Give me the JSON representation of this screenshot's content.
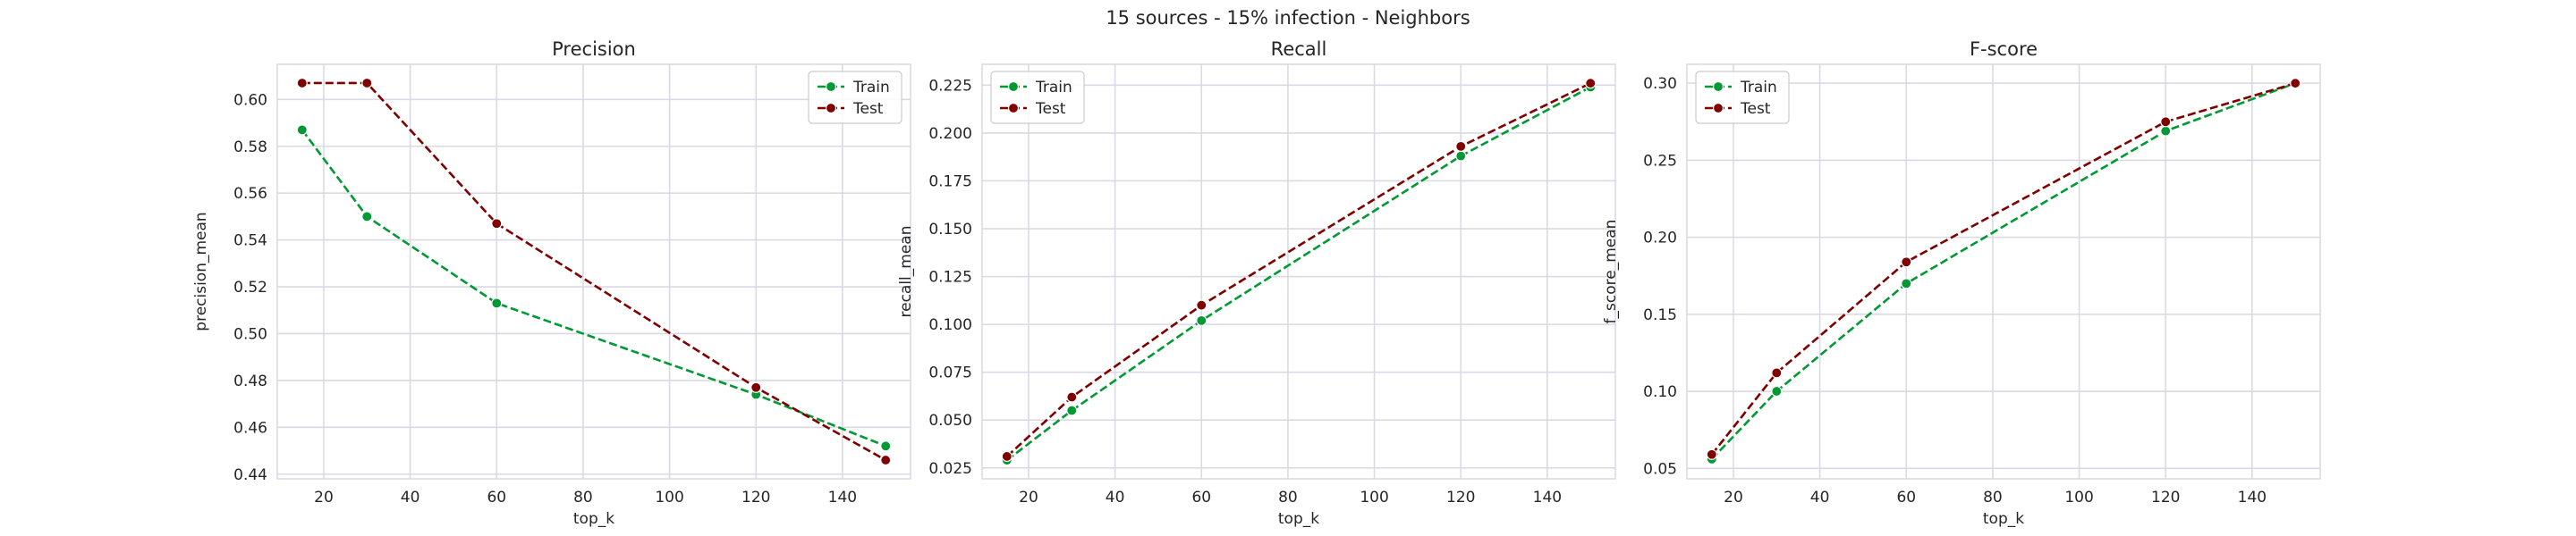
{
  "figure": {
    "suptitle": "15 sources - 15% infection - Neighbors"
  },
  "colors": {
    "train": "#009933",
    "test": "#800000",
    "grid": "#dadae4",
    "background": "#ffffff",
    "text": "#262626"
  },
  "chart_data": [
    {
      "type": "line",
      "title": "Precision",
      "xlabel": "top_k",
      "ylabel": "precision_mean",
      "x": [
        15,
        30,
        60,
        120,
        150
      ],
      "series": [
        {
          "name": "Train",
          "values": [
            0.587,
            0.55,
            0.513,
            0.474,
            0.452
          ]
        },
        {
          "name": "Test",
          "values": [
            0.607,
            0.607,
            0.547,
            0.477,
            0.446
          ]
        }
      ],
      "xlim": [
        9.25,
        155.75
      ],
      "ylim": [
        0.438,
        0.615
      ],
      "xticks": [
        20,
        40,
        60,
        80,
        100,
        120,
        140
      ],
      "xtick_labels": [
        "20",
        "40",
        "60",
        "80",
        "100",
        "120",
        "140"
      ],
      "yticks": [
        0.44,
        0.46,
        0.48,
        0.5,
        0.52,
        0.54,
        0.56,
        0.58,
        0.6
      ],
      "ytick_labels": [
        "0.44",
        "0.46",
        "0.48",
        "0.50",
        "0.52",
        "0.54",
        "0.56",
        "0.58",
        "0.60"
      ],
      "grid": true,
      "legend": "top-right"
    },
    {
      "type": "line",
      "title": "Recall",
      "xlabel": "top_k",
      "ylabel": "recall_mean",
      "x": [
        15,
        30,
        60,
        120,
        150
      ],
      "series": [
        {
          "name": "Train",
          "values": [
            0.029,
            0.055,
            0.102,
            0.188,
            0.224
          ]
        },
        {
          "name": "Test",
          "values": [
            0.031,
            0.062,
            0.11,
            0.193,
            0.226
          ]
        }
      ],
      "xlim": [
        9.25,
        155.75
      ],
      "ylim": [
        0.0193,
        0.2359
      ],
      "xticks": [
        20,
        40,
        60,
        80,
        100,
        120,
        140
      ],
      "xtick_labels": [
        "20",
        "40",
        "60",
        "80",
        "100",
        "120",
        "140"
      ],
      "yticks": [
        0.025,
        0.05,
        0.075,
        0.1,
        0.125,
        0.15,
        0.175,
        0.2,
        0.225
      ],
      "ytick_labels": [
        "0.025",
        "0.050",
        "0.075",
        "0.100",
        "0.125",
        "0.150",
        "0.175",
        "0.200",
        "0.225"
      ],
      "grid": true,
      "legend": "top-left"
    },
    {
      "type": "line",
      "title": "F-score",
      "xlabel": "top_k",
      "ylabel": "f_score_mean",
      "x": [
        15,
        30,
        60,
        120,
        150
      ],
      "series": [
        {
          "name": "Train",
          "values": [
            0.056,
            0.1,
            0.17,
            0.269,
            0.3
          ]
        },
        {
          "name": "Test",
          "values": [
            0.059,
            0.112,
            0.184,
            0.275,
            0.3
          ]
        }
      ],
      "xlim": [
        9.25,
        155.75
      ],
      "ylim": [
        0.0432,
        0.3123
      ],
      "xticks": [
        20,
        40,
        60,
        80,
        100,
        120,
        140
      ],
      "xtick_labels": [
        "20",
        "40",
        "60",
        "80",
        "100",
        "120",
        "140"
      ],
      "yticks": [
        0.05,
        0.1,
        0.15,
        0.2,
        0.25,
        0.3
      ],
      "ytick_labels": [
        "0.05",
        "0.10",
        "0.15",
        "0.20",
        "0.25",
        "0.30"
      ],
      "grid": true,
      "legend": "top-left"
    }
  ]
}
